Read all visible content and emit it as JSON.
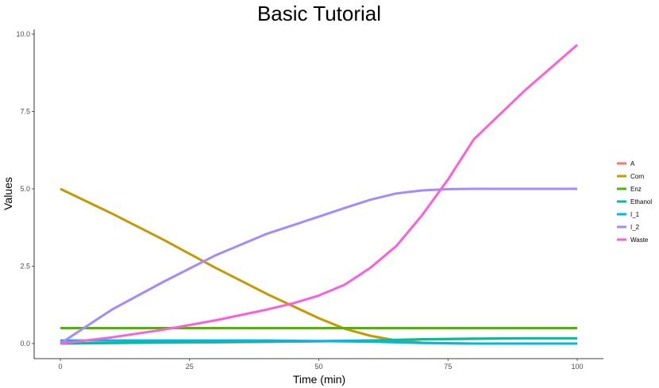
{
  "chart_data": {
    "type": "line",
    "title": "Basic Tutorial",
    "xlabel": "Time (min)",
    "ylabel": "Values",
    "xlim": [
      0,
      100
    ],
    "ylim": [
      0,
      10
    ],
    "xticks": [
      0,
      25,
      50,
      75,
      100
    ],
    "xtick_labels": [
      "0",
      "25",
      "50",
      "75",
      "100"
    ],
    "yticks": [
      0,
      2.5,
      5,
      7.5,
      10
    ],
    "ytick_labels": [
      "0.0",
      "2.5",
      "5.0",
      "7.5",
      "10.0"
    ],
    "grid": false,
    "legend_position": "right",
    "series": [
      {
        "name": "A",
        "color": "#F8766D",
        "x": [
          0,
          10,
          20,
          30,
          40,
          50,
          60,
          70,
          80,
          85
        ],
        "y": [
          0,
          0.02,
          0.03,
          0.04,
          0.05,
          0.07,
          0.1,
          0.13,
          0.15,
          0.16
        ]
      },
      {
        "name": "Corn",
        "color": "#C49A00",
        "x": [
          0,
          10,
          20,
          30,
          40,
          50,
          55,
          60,
          65,
          70,
          75,
          80
        ],
        "y": [
          5.0,
          4.2,
          3.35,
          2.45,
          1.6,
          0.82,
          0.48,
          0.25,
          0.1,
          0.03,
          0.01,
          0.0
        ]
      },
      {
        "name": "Enz",
        "color": "#53B400",
        "x": [
          0,
          100
        ],
        "y": [
          0.5,
          0.5
        ]
      },
      {
        "name": "Ethanol",
        "color": "#00C094",
        "x": [
          0,
          10,
          20,
          30,
          40,
          50,
          60,
          70,
          80,
          90,
          100
        ],
        "y": [
          0.0,
          0.02,
          0.04,
          0.05,
          0.07,
          0.08,
          0.1,
          0.14,
          0.16,
          0.17,
          0.17
        ]
      },
      {
        "name": "I_1",
        "color": "#00B6EB",
        "x": [
          0,
          10,
          20,
          30,
          40,
          50,
          60,
          70,
          80,
          90,
          100
        ],
        "y": [
          0.1,
          0.1,
          0.1,
          0.1,
          0.1,
          0.08,
          0.06,
          0.02,
          0.0,
          0.0,
          0.0
        ]
      },
      {
        "name": "I_2",
        "color": "#A58AFF",
        "x": [
          0,
          5,
          10,
          20,
          30,
          40,
          50,
          55,
          60,
          65,
          70,
          75,
          80,
          90,
          100
        ],
        "y": [
          0.0,
          0.55,
          1.1,
          2.0,
          2.85,
          3.55,
          4.1,
          4.38,
          4.65,
          4.85,
          4.95,
          4.99,
          5.0,
          5.0,
          5.0
        ]
      },
      {
        "name": "Waste",
        "color": "#FB61D7",
        "x": [
          0,
          10,
          20,
          30,
          40,
          45,
          50,
          55,
          60,
          65,
          70,
          75,
          80,
          90,
          100
        ],
        "y": [
          0.0,
          0.2,
          0.45,
          0.75,
          1.1,
          1.3,
          1.55,
          1.9,
          2.45,
          3.15,
          4.15,
          5.3,
          6.6,
          8.2,
          9.65
        ]
      }
    ]
  }
}
